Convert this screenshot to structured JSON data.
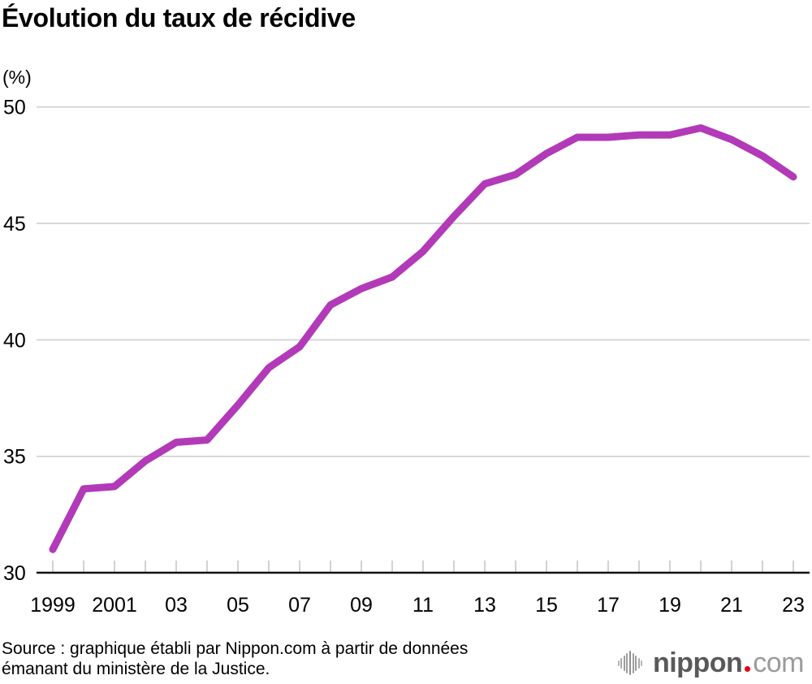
{
  "title": "Évolution du taux de récidive",
  "source": {
    "line1": "Source : graphique établi par Nippon.com à partir de données",
    "line2": "émanant du ministère de la Justice."
  },
  "logo": {
    "name_bold": "nippon",
    "name_light": "com"
  },
  "colors": {
    "line": "#B23AB8",
    "grid": "#CCCCCC",
    "axis": "#111111",
    "tick": "#C2C2C2",
    "text": "#000000",
    "logo_dark": "#595959",
    "logo_light": "#9B9B9B",
    "logo_dot": "#E60012"
  },
  "chart_data": {
    "type": "line",
    "title": "Évolution du taux de récidive",
    "xlabel": "",
    "ylabel": "(%)",
    "ylim": [
      30,
      50
    ],
    "y_ticks": [
      30,
      35,
      40,
      45,
      50
    ],
    "grid": true,
    "legend": false,
    "x": [
      1999,
      2000,
      2001,
      2002,
      2003,
      2004,
      2005,
      2006,
      2007,
      2008,
      2009,
      2010,
      2011,
      2012,
      2013,
      2014,
      2015,
      2016,
      2017,
      2018,
      2019,
      2020,
      2021,
      2022,
      2023
    ],
    "values": [
      31.0,
      33.6,
      33.7,
      34.8,
      35.6,
      35.7,
      37.2,
      38.8,
      39.7,
      41.5,
      42.2,
      42.7,
      43.8,
      45.3,
      46.7,
      47.1,
      48.0,
      48.7,
      48.7,
      48.8,
      48.8,
      49.1,
      48.6,
      47.9,
      47.0
    ],
    "x_tick_labels": [
      {
        "year": 1999,
        "label": "1999"
      },
      {
        "year": 2001,
        "label": "2001"
      },
      {
        "year": 2003,
        "label": "03"
      },
      {
        "year": 2005,
        "label": "05"
      },
      {
        "year": 2007,
        "label": "07"
      },
      {
        "year": 2009,
        "label": "09"
      },
      {
        "year": 2011,
        "label": "11"
      },
      {
        "year": 2013,
        "label": "13"
      },
      {
        "year": 2015,
        "label": "15"
      },
      {
        "year": 2017,
        "label": "17"
      },
      {
        "year": 2019,
        "label": "19"
      },
      {
        "year": 2021,
        "label": "21"
      },
      {
        "year": 2023,
        "label": "23"
      }
    ]
  }
}
